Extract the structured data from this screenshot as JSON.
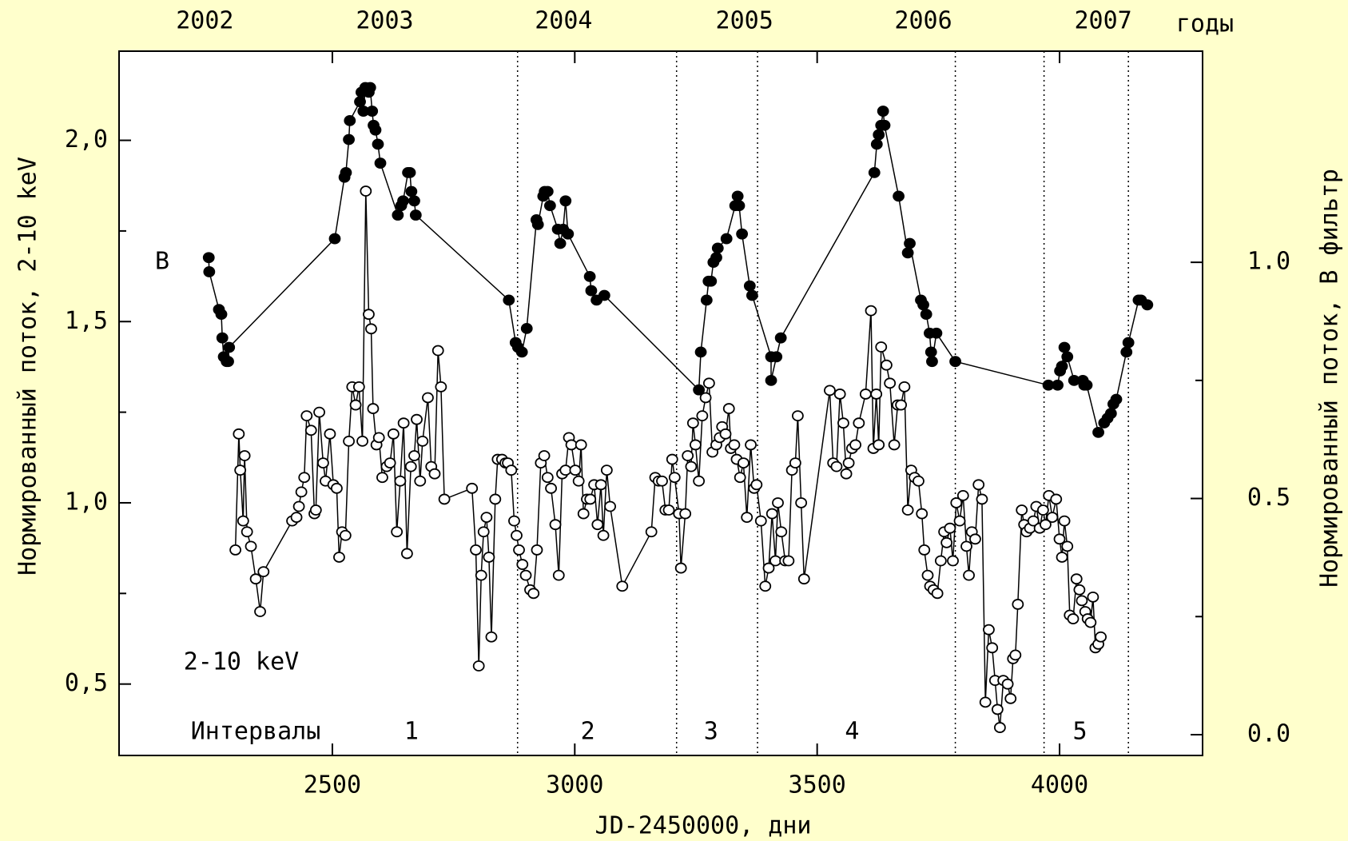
{
  "chart_data": {
    "type": "scatter-line",
    "x_label": "JD-2450000, дни",
    "y_label": "Нормированный поток, 2-10 keV",
    "y2_label": "Нормированный поток, B фильтр",
    "top_axis_label": "годы",
    "xlim": [
      2060,
      4295
    ],
    "xticks": [
      2500,
      3000,
      3500,
      4000
    ],
    "ylim": [
      0.303,
      2.246
    ],
    "yticks": [
      {
        "value": 0.5,
        "label": "0,5"
      },
      {
        "value": 1,
        "label": "1,0"
      },
      {
        "value": 1.5,
        "label": "1,5"
      },
      {
        "value": 2,
        "label": "2,0"
      }
    ],
    "yminorticks": [
      0.75,
      1.25,
      1.75
    ],
    "y2lim": [
      -0.044,
      1.447
    ],
    "y2ticks": [
      {
        "value": 0,
        "label": "0.0"
      },
      {
        "value": 0.5,
        "label": "0.5"
      },
      {
        "value": 1,
        "label": "1.0"
      }
    ],
    "y2minorticks": [
      0.25,
      0.75
    ],
    "top_ticks": [
      {
        "value": 2237,
        "label": "2002"
      },
      {
        "value": 2608,
        "label": "2003"
      },
      {
        "value": 2977,
        "label": "2004"
      },
      {
        "value": 3350,
        "label": "2005"
      },
      {
        "value": 3719,
        "label": "2006"
      },
      {
        "value": 4090,
        "label": "2007"
      }
    ],
    "intervals_label": "Интервалы",
    "interval_boundaries": [
      2882,
      3210,
      3377,
      3785,
      3968,
      4142
    ],
    "interval_labels": [
      {
        "x": 2663,
        "label": "1"
      },
      {
        "x": 3027,
        "label": "2"
      },
      {
        "x": 3281,
        "label": "3"
      },
      {
        "x": 3572,
        "label": "4"
      },
      {
        "x": 4042,
        "label": "5"
      }
    ],
    "series": [
      {
        "name": "B",
        "axis": "y2",
        "marker": "filled",
        "color": "#000000",
        "x": [
          2245,
          2246,
          2266,
          2271,
          2273,
          2276,
          2282,
          2285,
          2287,
          2505,
          2525,
          2528,
          2534,
          2536,
          2557,
          2560,
          2564,
          2568,
          2575,
          2578,
          2582,
          2585,
          2589,
          2594,
          2599,
          2635,
          2642,
          2646,
          2656,
          2660,
          2663,
          2669,
          2672,
          2864,
          2878,
          2883,
          2891,
          2901,
          2921,
          2924,
          2935,
          2938,
          2944,
          2949,
          2965,
          2970,
          2976,
          2981,
          2986,
          3031,
          3034,
          3045,
          3061,
          3256,
          3260,
          3272,
          3276,
          3281,
          3286,
          3292,
          3295,
          3313,
          3331,
          3336,
          3339,
          3345,
          3361,
          3366,
          3405,
          3405,
          3416,
          3425,
          3618,
          3623,
          3627,
          3632,
          3636,
          3639,
          3668,
          3687,
          3691,
          3714,
          3719,
          3725,
          3732,
          3735,
          3737,
          3746,
          3785,
          3977,
          3996,
          4001,
          4005,
          4010,
          4016,
          4030,
          4048,
          4051,
          4056,
          4080,
          4092,
          4099,
          4106,
          4111,
          4117,
          4138,
          4142,
          4163,
          4168,
          4181
        ],
        "values": [
          1.01,
          0.98,
          0.9,
          0.89,
          0.84,
          0.8,
          0.79,
          0.79,
          0.82,
          1.05,
          1.18,
          1.19,
          1.26,
          1.3,
          1.34,
          1.36,
          1.32,
          1.37,
          1.36,
          1.37,
          1.32,
          1.29,
          1.28,
          1.25,
          1.21,
          1.1,
          1.12,
          1.13,
          1.19,
          1.19,
          1.15,
          1.13,
          1.1,
          0.92,
          0.83,
          0.82,
          0.81,
          0.86,
          1.09,
          1.08,
          1.14,
          1.15,
          1.15,
          1.12,
          1.07,
          1.04,
          1.07,
          1.13,
          1.06,
          0.97,
          0.94,
          0.92,
          0.93,
          0.73,
          0.81,
          0.92,
          0.96,
          0.96,
          1.0,
          1.01,
          1.03,
          1.05,
          1.12,
          1.14,
          1.12,
          1.06,
          0.95,
          0.93,
          0.8,
          0.75,
          0.8,
          0.84,
          1.19,
          1.25,
          1.27,
          1.29,
          1.32,
          1.29,
          1.14,
          1.02,
          1.04,
          0.92,
          0.91,
          0.89,
          0.85,
          0.81,
          0.79,
          0.85,
          0.79,
          0.74,
          0.74,
          0.77,
          0.78,
          0.82,
          0.8,
          0.75,
          0.75,
          0.74,
          0.74,
          0.64,
          0.66,
          0.67,
          0.68,
          0.7,
          0.71,
          0.81,
          0.83,
          0.92,
          0.92,
          0.91
        ]
      },
      {
        "name": "2-10 keV",
        "axis": "y",
        "marker": "open",
        "color": "#000000",
        "x": [
          2300,
          2307,
          2310,
          2316,
          2319,
          2324,
          2332,
          2342,
          2351,
          2358,
          2417,
          2426,
          2431,
          2436,
          2442,
          2447,
          2456,
          2463,
          2466,
          2473,
          2481,
          2486,
          2495,
          2502,
          2509,
          2514,
          2520,
          2527,
          2534,
          2541,
          2548,
          2555,
          2562,
          2569,
          2575,
          2580,
          2584,
          2591,
          2596,
          2603,
          2612,
          2619,
          2626,
          2633,
          2640,
          2647,
          2654,
          2662,
          2669,
          2674,
          2681,
          2686,
          2697,
          2704,
          2711,
          2718,
          2724,
          2731,
          2788,
          2796,
          2802,
          2807,
          2812,
          2818,
          2823,
          2828,
          2836,
          2841,
          2850,
          2857,
          2862,
          2869,
          2875,
          2880,
          2885,
          2892,
          2899,
          2908,
          2915,
          2922,
          2930,
          2937,
          2944,
          2951,
          2960,
          2967,
          2974,
          2981,
          2988,
          2993,
          3001,
          3008,
          3013,
          3018,
          3025,
          3032,
          3040,
          3047,
          3054,
          3059,
          3066,
          3073,
          3098,
          3158,
          3166,
          3173,
          3180,
          3187,
          3194,
          3201,
          3206,
          3215,
          3219,
          3228,
          3233,
          3240,
          3244,
          3249,
          3256,
          3263,
          3270,
          3277,
          3284,
          3292,
          3299,
          3304,
          3311,
          3318,
          3322,
          3329,
          3334,
          3341,
          3348,
          3355,
          3363,
          3370,
          3375,
          3384,
          3393,
          3400,
          3407,
          3414,
          3419,
          3426,
          3434,
          3441,
          3448,
          3455,
          3460,
          3467,
          3473,
          3526,
          3533,
          3540,
          3547,
          3554,
          3560,
          3565,
          3572,
          3579,
          3586,
          3600,
          3611,
          3616,
          3622,
          3627,
          3632,
          3643,
          3650,
          3659,
          3666,
          3673,
          3680,
          3687,
          3694,
          3701,
          3709,
          3716,
          3721,
          3728,
          3733,
          3740,
          3748,
          3755,
          3762,
          3767,
          3774,
          3780,
          3787,
          3794,
          3801,
          3808,
          3813,
          3819,
          3826,
          3833,
          3840,
          3847,
          3854,
          3861,
          3867,
          3872,
          3877,
          3884,
          3893,
          3899,
          3904,
          3909,
          3914,
          3922,
          3927,
          3932,
          3939,
          3946,
          3952,
          3959,
          3966,
          3971,
          3978,
          3985,
          3993,
          4000,
          4005,
          4010,
          4016,
          4021,
          4028,
          4035,
          4041,
          4046,
          4053,
          4058,
          4064,
          4069,
          4074,
          4080,
          4085
        ],
        "values": [
          0.87,
          1.19,
          1.09,
          0.95,
          1.13,
          0.92,
          0.88,
          0.79,
          0.7,
          0.81,
          0.95,
          0.96,
          0.99,
          1.03,
          1.07,
          1.24,
          1.2,
          0.97,
          0.98,
          1.25,
          1.11,
          1.06,
          1.19,
          1.05,
          1.04,
          0.85,
          0.92,
          0.91,
          1.17,
          1.32,
          1.27,
          1.32,
          1.17,
          1.86,
          1.52,
          1.48,
          1.26,
          1.16,
          1.18,
          1.07,
          1.1,
          1.11,
          1.19,
          0.92,
          1.06,
          1.22,
          0.86,
          1.1,
          1.13,
          1.23,
          1.06,
          1.17,
          1.29,
          1.1,
          1.08,
          1.42,
          1.32,
          1.01,
          1.04,
          0.87,
          0.55,
          0.8,
          0.92,
          0.96,
          0.85,
          0.63,
          1.01,
          1.12,
          1.12,
          1.11,
          1.11,
          1.09,
          0.95,
          0.91,
          0.87,
          0.83,
          0.8,
          0.76,
          0.75,
          0.87,
          1.11,
          1.13,
          1.07,
          1.04,
          0.94,
          0.8,
          1.08,
          1.09,
          1.18,
          1.16,
          1.09,
          1.06,
          1.16,
          0.97,
          1.01,
          1.01,
          1.05,
          0.94,
          1.05,
          0.91,
          1.09,
          0.99,
          0.77,
          0.92,
          1.07,
          1.06,
          1.06,
          0.98,
          0.98,
          1.12,
          1.07,
          0.97,
          0.82,
          0.97,
          1.13,
          1.1,
          1.22,
          1.16,
          1.06,
          1.24,
          1.29,
          1.33,
          1.14,
          1.16,
          1.18,
          1.21,
          1.19,
          1.26,
          1.15,
          1.16,
          1.12,
          1.07,
          1.11,
          0.96,
          1.16,
          1.04,
          1.05,
          0.95,
          0.77,
          0.82,
          0.97,
          0.84,
          1.0,
          0.92,
          0.84,
          0.84,
          1.09,
          1.11,
          1.24,
          1.0,
          0.79,
          1.31,
          1.11,
          1.1,
          1.3,
          1.22,
          1.08,
          1.11,
          1.15,
          1.16,
          1.22,
          1.3,
          1.53,
          1.15,
          1.3,
          1.16,
          1.43,
          1.38,
          1.33,
          1.16,
          1.27,
          1.27,
          1.32,
          0.98,
          1.09,
          1.07,
          1.06,
          0.97,
          0.87,
          0.8,
          0.77,
          0.76,
          0.75,
          0.84,
          0.92,
          0.89,
          0.93,
          0.84,
          1.0,
          0.95,
          1.02,
          0.88,
          0.8,
          0.92,
          0.9,
          1.05,
          1.01,
          0.45,
          0.65,
          0.6,
          0.51,
          0.43,
          0.38,
          0.51,
          0.5,
          0.46,
          0.57,
          0.58,
          0.72,
          0.98,
          0.94,
          0.92,
          0.93,
          0.95,
          0.99,
          0.93,
          0.98,
          0.94,
          1.02,
          0.96,
          1.01,
          0.9,
          0.85,
          0.95,
          0.88,
          0.69,
          0.68,
          0.79,
          0.76,
          0.73,
          0.7,
          0.68,
          0.67,
          0.74,
          0.6,
          0.61,
          0.63
        ]
      }
    ]
  }
}
